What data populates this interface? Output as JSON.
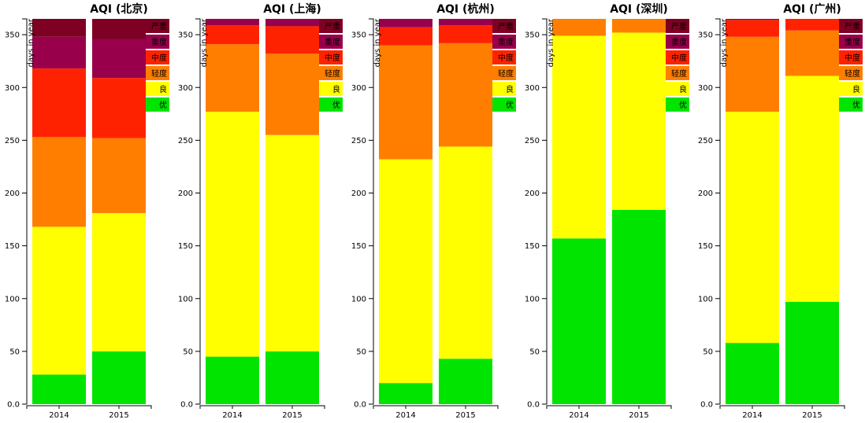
{
  "colors": {
    "优": "#00e400",
    "良": "#ffff00",
    "轻度": "#ff7e00",
    "中度": "#ff2200",
    "重度": "#99004c",
    "严重": "#7e0023"
  },
  "chart_data": [
    {
      "type": "bar",
      "stacked": true,
      "title": "AQI (北京)",
      "ylabel": "days in year",
      "ylim": [
        0,
        365
      ],
      "yticks": [
        0,
        50,
        100,
        150,
        200,
        250,
        300,
        350
      ],
      "tick_labels": [
        "0.0",
        "50",
        "100",
        "150",
        "200",
        "250",
        "300",
        "350"
      ],
      "categories": [
        "2014",
        "2015"
      ],
      "series": [
        {
          "name": "优",
          "values": [
            28,
            50
          ]
        },
        {
          "name": "良",
          "values": [
            140,
            131
          ]
        },
        {
          "name": "轻度",
          "values": [
            85,
            71
          ]
        },
        {
          "name": "中度",
          "values": [
            65,
            57
          ]
        },
        {
          "name": "重度",
          "values": [
            30,
            37
          ]
        },
        {
          "name": "严重",
          "values": [
            17,
            19
          ]
        }
      ],
      "legend": [
        "严重",
        "重度",
        "中度",
        "轻度",
        "良",
        "优"
      ],
      "legend_position": "top-right"
    },
    {
      "type": "bar",
      "stacked": true,
      "title": "AQI (上海)",
      "ylabel": "days in year",
      "ylim": [
        0,
        365
      ],
      "yticks": [
        0,
        50,
        100,
        150,
        200,
        250,
        300,
        350
      ],
      "tick_labels": [
        "0.0",
        "50",
        "100",
        "150",
        "200",
        "250",
        "300",
        "350"
      ],
      "categories": [
        "2014",
        "2015"
      ],
      "series": [
        {
          "name": "优",
          "values": [
            45,
            50
          ]
        },
        {
          "name": "良",
          "values": [
            232,
            205
          ]
        },
        {
          "name": "轻度",
          "values": [
            64,
            77
          ]
        },
        {
          "name": "中度",
          "values": [
            18,
            26
          ]
        },
        {
          "name": "重度",
          "values": [
            6,
            7
          ]
        },
        {
          "name": "严重",
          "values": [
            0,
            0
          ]
        }
      ],
      "legend": [
        "严重",
        "重度",
        "中度",
        "轻度",
        "良",
        "优"
      ],
      "legend_position": "top-right"
    },
    {
      "type": "bar",
      "stacked": true,
      "title": "AQI (杭州)",
      "ylabel": "days in year",
      "ylim": [
        0,
        365
      ],
      "yticks": [
        0,
        50,
        100,
        150,
        200,
        250,
        300,
        350
      ],
      "tick_labels": [
        "0.0",
        "50",
        "100",
        "150",
        "200",
        "250",
        "300",
        "350"
      ],
      "categories": [
        "2014",
        "2015"
      ],
      "series": [
        {
          "name": "优",
          "values": [
            20,
            43
          ]
        },
        {
          "name": "良",
          "values": [
            212,
            201
          ]
        },
        {
          "name": "轻度",
          "values": [
            108,
            98
          ]
        },
        {
          "name": "中度",
          "values": [
            17,
            17
          ]
        },
        {
          "name": "重度",
          "values": [
            8,
            6
          ]
        },
        {
          "name": "严重",
          "values": [
            0,
            0
          ]
        }
      ],
      "legend": [
        "严重",
        "重度",
        "中度",
        "轻度",
        "良",
        "优"
      ],
      "legend_position": "top-right"
    },
    {
      "type": "bar",
      "stacked": true,
      "title": "AQI (深圳)",
      "ylabel": "days in year",
      "ylim": [
        0,
        365
      ],
      "yticks": [
        0,
        50,
        100,
        150,
        200,
        250,
        300,
        350
      ],
      "tick_labels": [
        "0.0",
        "50",
        "100",
        "150",
        "200",
        "250",
        "300",
        "350"
      ],
      "categories": [
        "2014",
        "2015"
      ],
      "series": [
        {
          "name": "优",
          "values": [
            157,
            184
          ]
        },
        {
          "name": "良",
          "values": [
            192,
            168
          ]
        },
        {
          "name": "轻度",
          "values": [
            16,
            13
          ]
        },
        {
          "name": "中度",
          "values": [
            0,
            0
          ]
        },
        {
          "name": "重度",
          "values": [
            0,
            0
          ]
        },
        {
          "name": "严重",
          "values": [
            0,
            0
          ]
        }
      ],
      "legend": [
        "严重",
        "重度",
        "中度",
        "轻度",
        "良",
        "优"
      ],
      "legend_position": "top-right"
    },
    {
      "type": "bar",
      "stacked": true,
      "title": "AQI (广州)",
      "ylabel": "days in year",
      "ylim": [
        0,
        365
      ],
      "yticks": [
        0,
        50,
        100,
        150,
        200,
        250,
        300,
        350
      ],
      "tick_labels": [
        "0.0",
        "50",
        "100",
        "150",
        "200",
        "250",
        "300",
        "350"
      ],
      "categories": [
        "2014",
        "2015"
      ],
      "series": [
        {
          "name": "优",
          "values": [
            58,
            97
          ]
        },
        {
          "name": "良",
          "values": [
            219,
            214
          ]
        },
        {
          "name": "轻度",
          "values": [
            71,
            43
          ]
        },
        {
          "name": "中度",
          "values": [
            16,
            11
          ]
        },
        {
          "name": "重度",
          "values": [
            1,
            0
          ]
        },
        {
          "name": "严重",
          "values": [
            0,
            0
          ]
        }
      ],
      "legend": [
        "严重",
        "重度",
        "中度",
        "轻度",
        "良",
        "优"
      ],
      "legend_position": "top-right"
    }
  ]
}
